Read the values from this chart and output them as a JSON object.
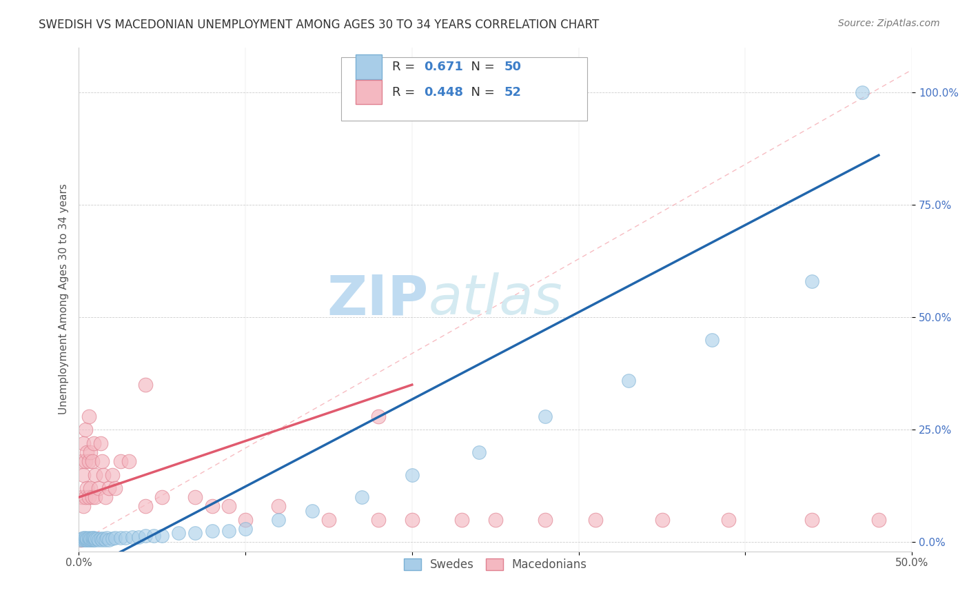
{
  "title": "SWEDISH VS MACEDONIAN UNEMPLOYMENT AMONG AGES 30 TO 34 YEARS CORRELATION CHART",
  "source": "Source: ZipAtlas.com",
  "ylabel": "Unemployment Among Ages 30 to 34 years",
  "xlim": [
    0.0,
    0.5
  ],
  "ylim": [
    -0.02,
    1.1
  ],
  "xticks": [
    0.0,
    0.1,
    0.2,
    0.3,
    0.4,
    0.5
  ],
  "xticklabels": [
    "0.0%",
    "",
    "",
    "",
    "",
    "50.0%"
  ],
  "yticks": [
    0.0,
    0.25,
    0.5,
    0.75,
    1.0
  ],
  "yticklabels": [
    "0.0%",
    "25.0%",
    "50.0%",
    "75.0%",
    "100.0%"
  ],
  "swedes_R": 0.671,
  "swedes_N": 50,
  "macedonians_R": 0.448,
  "macedonians_N": 52,
  "blue_color": "#a8cde8",
  "pink_color": "#f4b8c1",
  "blue_line_color": "#2166ac",
  "pink_line_color": "#e05a6e",
  "ref_line_color": "#f4a0a8",
  "legend_color": "#3d7ec8",
  "watermark_color": "#d0e8f5",
  "background_color": "#ffffff",
  "swedes_x": [
    0.001,
    0.002,
    0.003,
    0.003,
    0.004,
    0.004,
    0.005,
    0.005,
    0.006,
    0.006,
    0.007,
    0.007,
    0.008,
    0.008,
    0.009,
    0.009,
    0.01,
    0.01,
    0.011,
    0.012,
    0.013,
    0.014,
    0.015,
    0.016,
    0.017,
    0.018,
    0.02,
    0.022,
    0.025,
    0.028,
    0.032,
    0.036,
    0.04,
    0.045,
    0.05,
    0.06,
    0.07,
    0.08,
    0.09,
    0.1,
    0.12,
    0.14,
    0.17,
    0.2,
    0.24,
    0.28,
    0.33,
    0.38,
    0.44,
    0.47
  ],
  "swedes_y": [
    0.005,
    0.008,
    0.005,
    0.01,
    0.005,
    0.01,
    0.005,
    0.008,
    0.005,
    0.01,
    0.005,
    0.008,
    0.005,
    0.01,
    0.005,
    0.01,
    0.005,
    0.008,
    0.008,
    0.005,
    0.008,
    0.005,
    0.008,
    0.005,
    0.01,
    0.005,
    0.008,
    0.01,
    0.01,
    0.01,
    0.012,
    0.012,
    0.015,
    0.015,
    0.015,
    0.02,
    0.02,
    0.025,
    0.025,
    0.03,
    0.05,
    0.07,
    0.1,
    0.15,
    0.2,
    0.28,
    0.36,
    0.45,
    0.58,
    1.0
  ],
  "macedonians_x": [
    0.001,
    0.002,
    0.002,
    0.003,
    0.003,
    0.003,
    0.004,
    0.004,
    0.004,
    0.005,
    0.005,
    0.006,
    0.006,
    0.006,
    0.007,
    0.007,
    0.008,
    0.008,
    0.009,
    0.01,
    0.01,
    0.012,
    0.013,
    0.014,
    0.015,
    0.016,
    0.018,
    0.02,
    0.022,
    0.025,
    0.03,
    0.04,
    0.05,
    0.07,
    0.08,
    0.09,
    0.1,
    0.12,
    0.15,
    0.18,
    0.2,
    0.23,
    0.25,
    0.28,
    0.31,
    0.35,
    0.39,
    0.44,
    0.48,
    0.52,
    0.04,
    0.18
  ],
  "macedonians_y": [
    0.005,
    0.1,
    0.18,
    0.08,
    0.15,
    0.22,
    0.1,
    0.18,
    0.25,
    0.12,
    0.2,
    0.1,
    0.18,
    0.28,
    0.12,
    0.2,
    0.1,
    0.18,
    0.22,
    0.1,
    0.15,
    0.12,
    0.22,
    0.18,
    0.15,
    0.1,
    0.12,
    0.15,
    0.12,
    0.18,
    0.18,
    0.08,
    0.1,
    0.1,
    0.08,
    0.08,
    0.05,
    0.08,
    0.05,
    0.05,
    0.05,
    0.05,
    0.05,
    0.05,
    0.05,
    0.05,
    0.05,
    0.05,
    0.05,
    0.05,
    0.35,
    0.28
  ],
  "blue_line_x": [
    0.0,
    0.48
  ],
  "blue_line_y": [
    -0.07,
    0.86
  ],
  "pink_line_x": [
    0.0,
    0.2
  ],
  "pink_line_y": [
    0.1,
    0.35
  ],
  "ref_line_x": [
    0.01,
    0.5
  ],
  "ref_line_y": [
    0.02,
    1.05
  ]
}
